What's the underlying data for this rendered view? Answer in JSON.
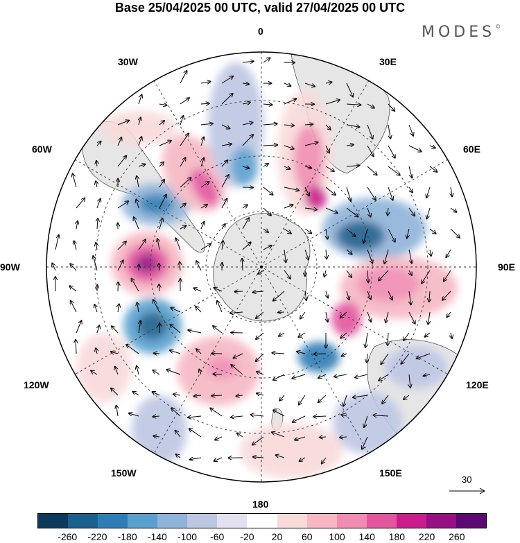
{
  "title": "Base 25/04/2025 00 UTC, valid 27/04/2025 00 UTC",
  "brand": "MODES",
  "brand_mark": "©",
  "longitude_labels": {
    "top": "0",
    "upper_right_1": "30E",
    "upper_right_2": "60E",
    "right": "90E",
    "lower_right_1": "120E",
    "lower_right_2": "150E",
    "bottom": "180",
    "lower_left_2": "150W",
    "lower_left_1": "120W",
    "left": "90W",
    "upper_left_2": "60W",
    "upper_left_1": "30W"
  },
  "reference_vector": {
    "label": "30"
  },
  "colorbar": {
    "colors": [
      "#0d3a5c",
      "#1b5f8d",
      "#2f7db5",
      "#5aa0cf",
      "#8fb3d9",
      "#bdc6e3",
      "#e3e1f0",
      "#ffffff",
      "#f9dada",
      "#f6b7c3",
      "#f08cb2",
      "#e3559f",
      "#c81d8b",
      "#961083",
      "#5b0a73"
    ],
    "tick_labels": [
      "-260",
      "-220",
      "-180",
      "-140",
      "-100",
      "-60",
      "-20",
      "20",
      "60",
      "100",
      "140",
      "180",
      "220",
      "260"
    ]
  },
  "map_style": {
    "land_color": "#e6e6e6",
    "coast_color": "#555555",
    "grid_color": "#333333"
  }
}
